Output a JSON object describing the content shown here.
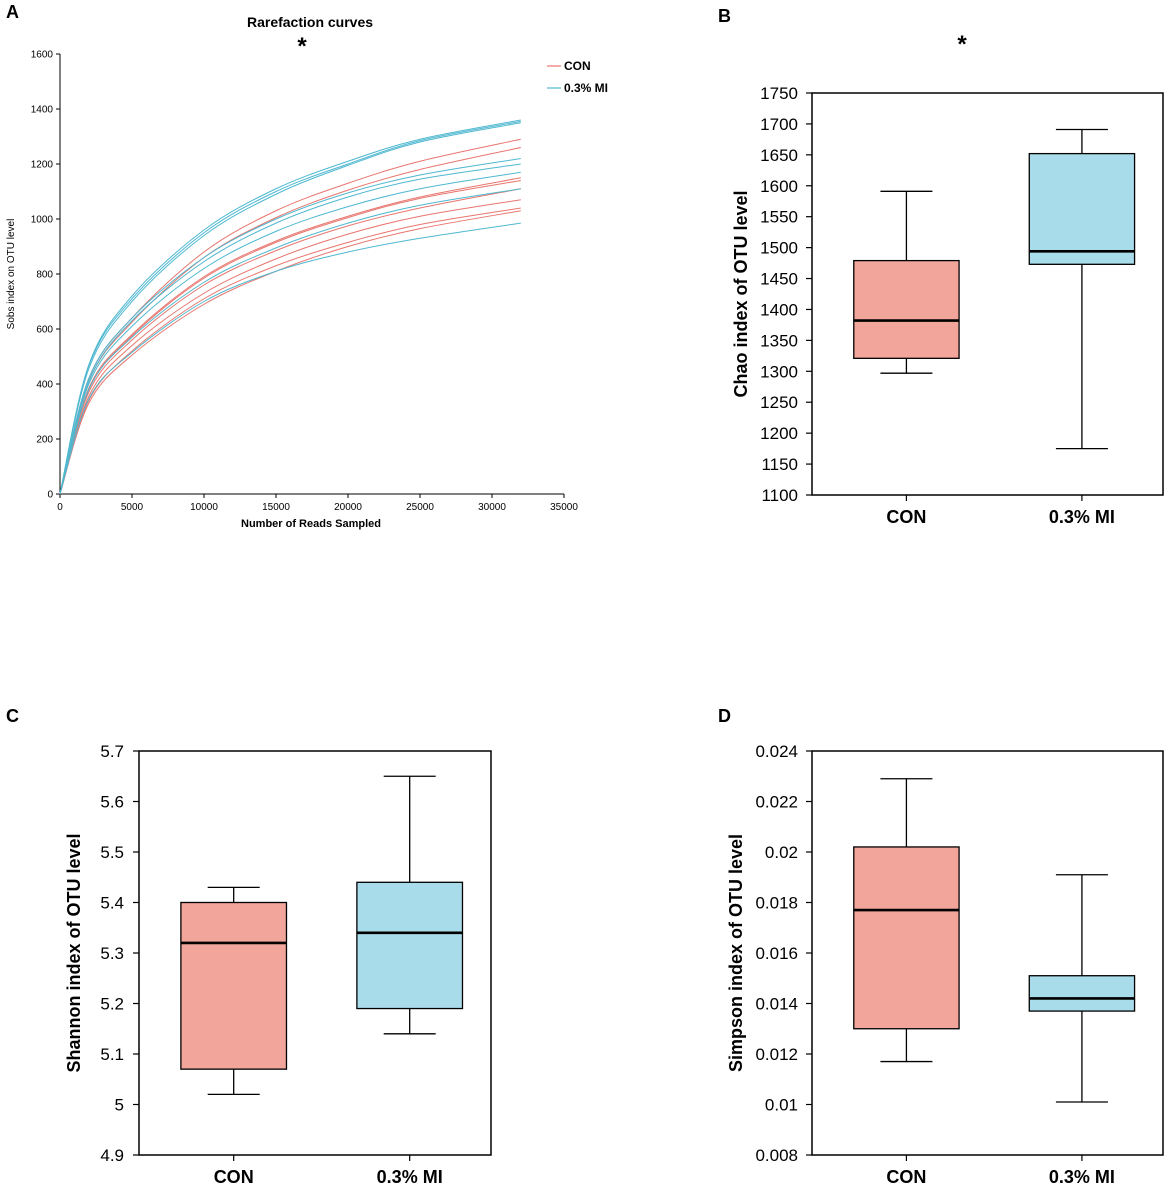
{
  "chart_data": [
    {
      "panel": "A",
      "type": "line",
      "title": "Rarefaction curves",
      "significance": "*",
      "xlabel": "Number of Reads Sampled",
      "ylabel": "Sobs index on OTU level",
      "xlim": [
        0,
        35000
      ],
      "ylim": [
        0,
        1600
      ],
      "xticks": [
        0,
        5000,
        10000,
        15000,
        20000,
        25000,
        30000,
        35000
      ],
      "yticks": [
        0,
        200,
        400,
        600,
        800,
        1000,
        1200,
        1400,
        1600
      ],
      "legend": [
        {
          "name": "CON",
          "color": "#e8766f"
        },
        {
          "name": "0.3% MI",
          "color": "#4fb8d0"
        }
      ],
      "series": [
        {
          "group": "CON",
          "color": "#e8766f",
          "x": [
            0,
            2000,
            5000,
            10000,
            15000,
            20000,
            25000,
            32000
          ],
          "values": [
            0,
            420,
            640,
            880,
            1030,
            1130,
            1210,
            1290
          ]
        },
        {
          "group": "CON",
          "color": "#e8766f",
          "x": [
            0,
            2000,
            5000,
            10000,
            15000,
            20000,
            25000,
            32000
          ],
          "values": [
            0,
            410,
            625,
            860,
            1005,
            1105,
            1180,
            1260
          ]
        },
        {
          "group": "CON",
          "color": "#e8766f",
          "x": [
            0,
            2000,
            5000,
            10000,
            15000,
            20000,
            25000,
            32000
          ],
          "values": [
            0,
            385,
            580,
            790,
            920,
            1010,
            1080,
            1150
          ]
        },
        {
          "group": "CON",
          "color": "#e8766f",
          "x": [
            0,
            2000,
            5000,
            10000,
            15000,
            20000,
            25000,
            32000
          ],
          "values": [
            0,
            380,
            575,
            785,
            915,
            1005,
            1075,
            1140
          ]
        },
        {
          "group": "CON",
          "color": "#e8766f",
          "x": [
            0,
            2000,
            5000,
            10000,
            15000,
            20000,
            25000,
            32000
          ],
          "values": [
            0,
            370,
            560,
            760,
            885,
            975,
            1040,
            1110
          ]
        },
        {
          "group": "CON",
          "color": "#e8766f",
          "x": [
            0,
            2000,
            5000,
            10000,
            15000,
            20000,
            25000,
            32000
          ],
          "values": [
            0,
            355,
            540,
            730,
            855,
            945,
            1010,
            1070
          ]
        },
        {
          "group": "CON",
          "color": "#e8766f",
          "x": [
            0,
            2000,
            5000,
            10000,
            15000,
            20000,
            25000,
            32000
          ],
          "values": [
            0,
            340,
            520,
            710,
            830,
            915,
            980,
            1040
          ]
        },
        {
          "group": "CON",
          "color": "#e8766f",
          "x": [
            0,
            2000,
            5000,
            10000,
            15000,
            20000,
            25000,
            32000
          ],
          "values": [
            0,
            330,
            505,
            690,
            810,
            900,
            965,
            1030
          ]
        },
        {
          "group": "0.3% MI",
          "color": "#4fb8d0",
          "x": [
            0,
            2000,
            5000,
            10000,
            15000,
            20000,
            25000,
            32000
          ],
          "values": [
            0,
            470,
            720,
            960,
            1110,
            1210,
            1290,
            1360
          ]
        },
        {
          "group": "0.3% MI",
          "color": "#4fb8d0",
          "x": [
            0,
            2000,
            5000,
            10000,
            15000,
            20000,
            25000,
            32000
          ],
          "values": [
            0,
            465,
            710,
            950,
            1100,
            1200,
            1285,
            1355
          ]
        },
        {
          "group": "0.3% MI",
          "color": "#4fb8d0",
          "x": [
            0,
            2000,
            5000,
            10000,
            15000,
            20000,
            25000,
            32000
          ],
          "values": [
            0,
            455,
            700,
            940,
            1090,
            1195,
            1280,
            1350
          ]
        },
        {
          "group": "0.3% MI",
          "color": "#4fb8d0",
          "x": [
            0,
            2000,
            5000,
            10000,
            15000,
            20000,
            25000,
            32000
          ],
          "values": [
            0,
            420,
            640,
            860,
            1000,
            1095,
            1160,
            1220
          ]
        },
        {
          "group": "0.3% MI",
          "color": "#4fb8d0",
          "x": [
            0,
            2000,
            5000,
            10000,
            15000,
            20000,
            25000,
            32000
          ],
          "values": [
            0,
            410,
            630,
            845,
            985,
            1080,
            1145,
            1200
          ]
        },
        {
          "group": "0.3% MI",
          "color": "#4fb8d0",
          "x": [
            0,
            2000,
            5000,
            10000,
            15000,
            20000,
            25000,
            32000
          ],
          "values": [
            0,
            400,
            610,
            820,
            955,
            1045,
            1110,
            1170
          ]
        },
        {
          "group": "0.3% MI",
          "color": "#4fb8d0",
          "x": [
            0,
            2000,
            5000,
            10000,
            15000,
            20000,
            25000,
            32000
          ],
          "values": [
            0,
            380,
            570,
            770,
            895,
            985,
            1050,
            1110
          ]
        },
        {
          "group": "0.3% MI",
          "color": "#4fb8d0",
          "x": [
            0,
            2000,
            5000,
            10000,
            15000,
            20000,
            25000,
            32000
          ],
          "values": [
            0,
            345,
            515,
            700,
            810,
            880,
            930,
            985
          ]
        }
      ]
    },
    {
      "panel": "B",
      "type": "box",
      "significance": "*",
      "ylabel": "Chao index of OTU level",
      "ylim": [
        1100,
        1750
      ],
      "yticks": [
        "1100",
        "1150",
        "1200",
        "1250",
        "1300",
        "1350",
        "1400",
        "1450",
        "1500",
        "1550",
        "1600",
        "1650",
        "1700",
        "1750"
      ],
      "categories": [
        "CON",
        "0.3% MI"
      ],
      "boxes": [
        {
          "name": "CON",
          "color": "#f2a59a",
          "min": 1297,
          "q1": 1321,
          "median": 1382,
          "q3": 1479,
          "max": 1591
        },
        {
          "name": "0.3% MI",
          "color": "#a8dcea",
          "min": 1175,
          "q1": 1473,
          "median": 1494,
          "q3": 1652,
          "max": 1691
        }
      ]
    },
    {
      "panel": "C",
      "type": "box",
      "ylabel": "Shannon index of OTU level",
      "ylim": [
        4.9,
        5.7
      ],
      "yticks": [
        "4.9",
        "5",
        "5.1",
        "5.2",
        "5.3",
        "5.4",
        "5.5",
        "5.6",
        "5.7"
      ],
      "categories": [
        "CON",
        "0.3% MI"
      ],
      "boxes": [
        {
          "name": "CON",
          "color": "#f2a59a",
          "min": 5.02,
          "q1": 5.07,
          "median": 5.32,
          "q3": 5.4,
          "max": 5.43
        },
        {
          "name": "0.3% MI",
          "color": "#a8dcea",
          "min": 5.14,
          "q1": 5.19,
          "median": 5.34,
          "q3": 5.44,
          "max": 5.65
        }
      ]
    },
    {
      "panel": "D",
      "type": "box",
      "ylabel": "Simpson index of OTU level",
      "ylim": [
        0.008,
        0.024
      ],
      "yticks": [
        "0.008",
        "0.01",
        "0.012",
        "0.014",
        "0.016",
        "0.018",
        "0.02",
        "0.022",
        "0.024"
      ],
      "categories": [
        "CON",
        "0.3% MI"
      ],
      "boxes": [
        {
          "name": "CON",
          "color": "#f2a59a",
          "min": 0.0117,
          "q1": 0.013,
          "median": 0.0177,
          "q3": 0.0202,
          "max": 0.0229
        },
        {
          "name": "0.3% MI",
          "color": "#a8dcea",
          "min": 0.0101,
          "q1": 0.0137,
          "median": 0.0142,
          "q3": 0.0151,
          "max": 0.0191
        }
      ]
    }
  ]
}
